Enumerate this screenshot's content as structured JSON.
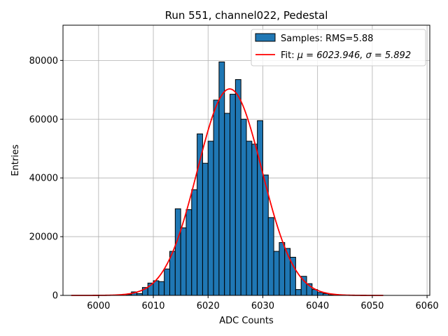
{
  "chart_data": {
    "type": "bar",
    "title": "Run 551, channel022, Pedestal",
    "xlabel": "ADC Counts",
    "ylabel": "Entries",
    "xlim": [
      5993.5,
      6060.5
    ],
    "ylim": [
      0,
      92000
    ],
    "grid": true,
    "legend_position": "top-right",
    "xticks": [
      6000,
      6010,
      6020,
      6030,
      6040,
      6050,
      6060
    ],
    "yticks": [
      0,
      20000,
      40000,
      60000,
      80000
    ],
    "bar_color": "#1f77b4",
    "fit_color": "#ff0000",
    "bin_width": 1,
    "series": [
      {
        "name": "Samples: RMS=5.88",
        "bins_left": [
          6005,
          6006,
          6007,
          6008,
          6009,
          6010,
          6011,
          6012,
          6013,
          6014,
          6015,
          6016,
          6017,
          6018,
          6019,
          6020,
          6021,
          6022,
          6023,
          6024,
          6025,
          6026,
          6027,
          6028,
          6029,
          6030,
          6031,
          6032,
          6033,
          6034,
          6035,
          6036,
          6037,
          6038,
          6039,
          6040,
          6041,
          6042
        ],
        "values": [
          300,
          1200,
          600,
          2700,
          4200,
          5000,
          4700,
          9000,
          15000,
          29500,
          23000,
          29200,
          36000,
          55000,
          45000,
          52500,
          66500,
          79500,
          62000,
          68500,
          73500,
          60000,
          52500,
          51500,
          59500,
          41000,
          26500,
          15000,
          18000,
          16000,
          13000,
          2000,
          6500,
          4000,
          2000,
          1000,
          600,
          200
        ]
      },
      {
        "name_prefix": "Fit: ",
        "name_math": "μ = 6023.946, σ = 5.892",
        "type": "line",
        "fit": {
          "mu": 6023.946,
          "sigma": 5.892,
          "amplitude": 70300,
          "x_range": [
            5995,
            6052
          ]
        }
      }
    ]
  }
}
